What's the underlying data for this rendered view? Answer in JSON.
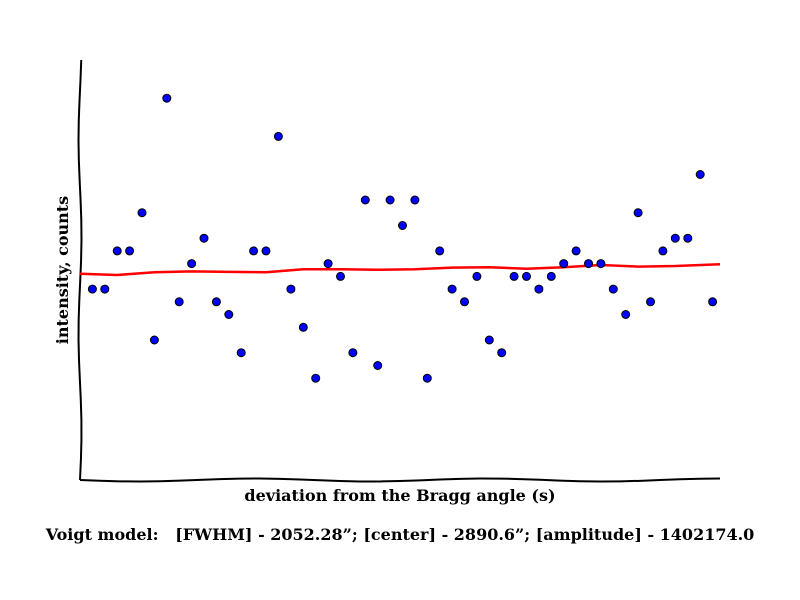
{
  "chart_data": {
    "type": "scatter",
    "xlabel": "deviation from the Bragg angle (s)",
    "ylabel": "intensity, counts",
    "annotation": "Voigt model:   [FWHM] - 2052.28”; [center] - 2890.6”; [amplitude] - 1402174.0",
    "xlim": [
      0,
      51.6
    ],
    "ylim": [
      0,
      33
    ],
    "grid": false,
    "ticks_shown": false,
    "style": "hand-drawn (xkcd-like)",
    "series": [
      {
        "kind": "points",
        "color": "#0000ff",
        "x": [
          1,
          2,
          3,
          4,
          5,
          6,
          7,
          8,
          9,
          10,
          11,
          12,
          13,
          14,
          15,
          16,
          17,
          18,
          19,
          20,
          21,
          22,
          23,
          24,
          25,
          26,
          27,
          28,
          29,
          30,
          31,
          32,
          33,
          34,
          35,
          36,
          37,
          38,
          39,
          40,
          41,
          42,
          43,
          44,
          45,
          46,
          47,
          48,
          49,
          50,
          51
        ],
        "y": [
          15,
          15,
          18,
          18,
          21,
          11,
          30,
          14,
          17,
          19,
          14,
          13,
          10,
          18,
          18,
          27,
          15,
          12,
          8,
          17,
          16,
          10,
          22,
          9,
          22,
          20,
          22,
          8,
          18,
          15,
          14,
          16,
          11,
          10,
          16,
          16,
          15,
          16,
          17,
          18,
          17,
          17,
          15,
          13,
          21,
          14,
          18,
          19,
          19,
          24,
          14
        ]
      },
      {
        "kind": "fit",
        "color": "#ff0000",
        "x": [
          0,
          3,
          6,
          9,
          12,
          15,
          18,
          21,
          24,
          27,
          30,
          33,
          36,
          39,
          42,
          45,
          48,
          51.6
        ],
        "y": [
          16.2,
          16.2,
          16.3,
          16.3,
          16.4,
          16.4,
          16.5,
          16.5,
          16.6,
          16.6,
          16.6,
          16.7,
          16.7,
          16.7,
          16.8,
          16.8,
          16.9,
          16.9
        ]
      }
    ]
  }
}
